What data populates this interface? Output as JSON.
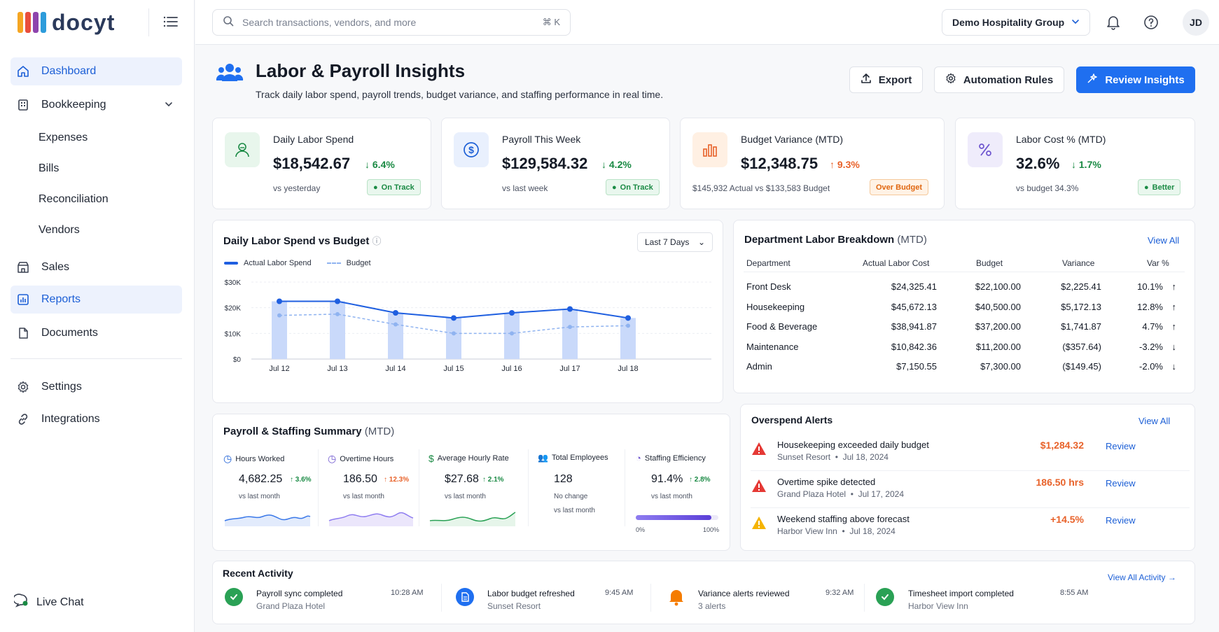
{
  "app": {
    "logo_text": "docyt"
  },
  "topbar": {
    "search_placeholder": "Search transactions, vendors, and more",
    "shortcut": "⌘ K",
    "company": "Demo Hospitality Group",
    "avatar": "JD"
  },
  "sidebar": {
    "items": [
      {
        "label": "Dashboard",
        "icon": "home-icon",
        "active": true
      },
      {
        "label": "Bookkeeping",
        "icon": "building-icon"
      },
      {
        "label": "Sales",
        "icon": "store-icon"
      },
      {
        "label": "Reports",
        "icon": "bar-chart-icon",
        "active": true
      },
      {
        "label": "Documents",
        "icon": "document-icon"
      },
      {
        "label": "Settings",
        "icon": "gear-icon"
      },
      {
        "label": "Integrations",
        "icon": "link-icon"
      }
    ],
    "sub_items": [
      "Expenses",
      "Bills",
      "Reconciliation",
      "Vendors"
    ],
    "live_chat": "Live Chat"
  },
  "header": {
    "title": "Labor & Payroll Insights",
    "subtitle": "Track daily labor spend, payroll trends, budget variance, and staffing performance in real time.",
    "export": "Export",
    "automation": "Automation Rules",
    "review": "Review Insights"
  },
  "kpis": [
    {
      "label": "Daily Labor Spend",
      "value": "$18,542.67",
      "delta": "6.4%",
      "sub": "vs yesterday",
      "badge": "On Track"
    },
    {
      "label": "Payroll This Week",
      "value": "$129,584.32",
      "delta": "4.2%",
      "sub": "vs last week",
      "badge": "On Track"
    },
    {
      "label": "Budget Variance (MTD)",
      "value": "$12,348.75",
      "delta": "9.3%",
      "sub": "$145,932 Actual vs $133,583 Budget",
      "badge": "Over Budget"
    },
    {
      "label": "Labor Cost % (MTD)",
      "value": "32.6%",
      "delta": "1.7%",
      "sub": "vs budget 34.3%",
      "badge": "Better"
    }
  ],
  "spend_chart": {
    "title": "Daily Labor Spend vs Budget",
    "range": "Last 7 Days",
    "legend_actual": "Actual Labor Spend",
    "legend_budget": "Budget",
    "y_ticks": [
      "$30K",
      "$20K",
      "$10K",
      "$0"
    ]
  },
  "chart_data": {
    "type": "bar",
    "categories": [
      "Jul 12",
      "Jul 13",
      "Jul 14",
      "Jul 15",
      "Jul 16",
      "Jul 17",
      "Jul 18"
    ],
    "series": [
      {
        "name": "Actual Labor Spend",
        "values": [
          22500,
          22500,
          18000,
          16000,
          18000,
          19500,
          16000
        ]
      },
      {
        "name": "Budget",
        "values": [
          17000,
          17500,
          13500,
          10000,
          10000,
          12500,
          13000
        ]
      }
    ],
    "ylim": [
      0,
      30000
    ]
  },
  "dept": {
    "title": "Department Labor Breakdown",
    "title_suffix": "(MTD)",
    "view_all": "View All",
    "headers": [
      "Department",
      "Actual Labor Cost",
      "Budget",
      "Variance",
      "Var %"
    ],
    "rows": [
      {
        "dept": "Front Desk",
        "actual": "$24,325.41",
        "budget": "$22,100.00",
        "variance": "$2,225.41",
        "pct": "10.1%",
        "dir": "up"
      },
      {
        "dept": "Housekeeping",
        "actual": "$45,672.13",
        "budget": "$40,500.00",
        "variance": "$5,172.13",
        "pct": "12.8%",
        "dir": "up"
      },
      {
        "dept": "Food & Beverage",
        "actual": "$38,941.87",
        "budget": "$37,200.00",
        "variance": "$1,741.87",
        "pct": "4.7%",
        "dir": "up"
      },
      {
        "dept": "Maintenance",
        "actual": "$10,842.36",
        "budget": "$11,200.00",
        "variance": "($357.64)",
        "pct": "-3.2%",
        "dir": "down"
      },
      {
        "dept": "Admin",
        "actual": "$7,150.55",
        "budget": "$7,300.00",
        "variance": "($149.45)",
        "pct": "-2.0%",
        "dir": "down"
      }
    ]
  },
  "summary": {
    "title": "Payroll & Staffing Summary",
    "title_suffix": "(MTD)",
    "metrics": [
      {
        "label": "Hours Worked",
        "value": "4,682.25",
        "delta": "3.6%",
        "sub": "vs last month"
      },
      {
        "label": "Overtime Hours",
        "value": "186.50",
        "delta": "12.3%",
        "sub": "vs last month"
      },
      {
        "label": "Average Hourly Rate",
        "value": "$27.68",
        "delta": "2.1%",
        "sub": "vs last month"
      },
      {
        "label": "Total Employees",
        "value": "128",
        "sub": "No change",
        "sub2": "vs last month"
      },
      {
        "label": "Staffing Efficiency",
        "value": "91.4%",
        "delta": "2.8%",
        "sub": "vs last month",
        "bar_min": "0%",
        "bar_max": "100%",
        "level": 0.914
      }
    ]
  },
  "alerts": {
    "title": "Overspend Alerts",
    "view_all": "View All",
    "items": [
      {
        "title": "Housekeeping exceeded daily budget",
        "place": "Sunset Resort",
        "date": "Jul 18, 2024",
        "amount": "$1,284.32",
        "action": "Review",
        "color": "#e53935"
      },
      {
        "title": "Overtime spike detected",
        "place": "Grand Plaza Hotel",
        "date": "Jul 17, 2024",
        "amount": "186.50 hrs",
        "action": "Review",
        "color": "#e53935"
      },
      {
        "title": "Weekend staffing above forecast",
        "place": "Harbor View Inn",
        "date": "Jul 18, 2024",
        "amount": "+14.5%",
        "action": "Review",
        "color": "#f5b400"
      }
    ]
  },
  "activity": {
    "title": "Recent Activity",
    "view_all": "View All Activity",
    "items": [
      {
        "title": "Payroll sync completed",
        "sub": "Grand Plaza Hotel",
        "time": "10:28 AM"
      },
      {
        "title": "Labor budget refreshed",
        "sub": "Sunset Resort",
        "time": "9:45 AM"
      },
      {
        "title": "Variance alerts reviewed",
        "sub": "3 alerts",
        "time": "9:32 AM"
      },
      {
        "title": "Timesheet import completed",
        "sub": "Harbor View Inn",
        "time": "8:55 AM"
      }
    ]
  }
}
